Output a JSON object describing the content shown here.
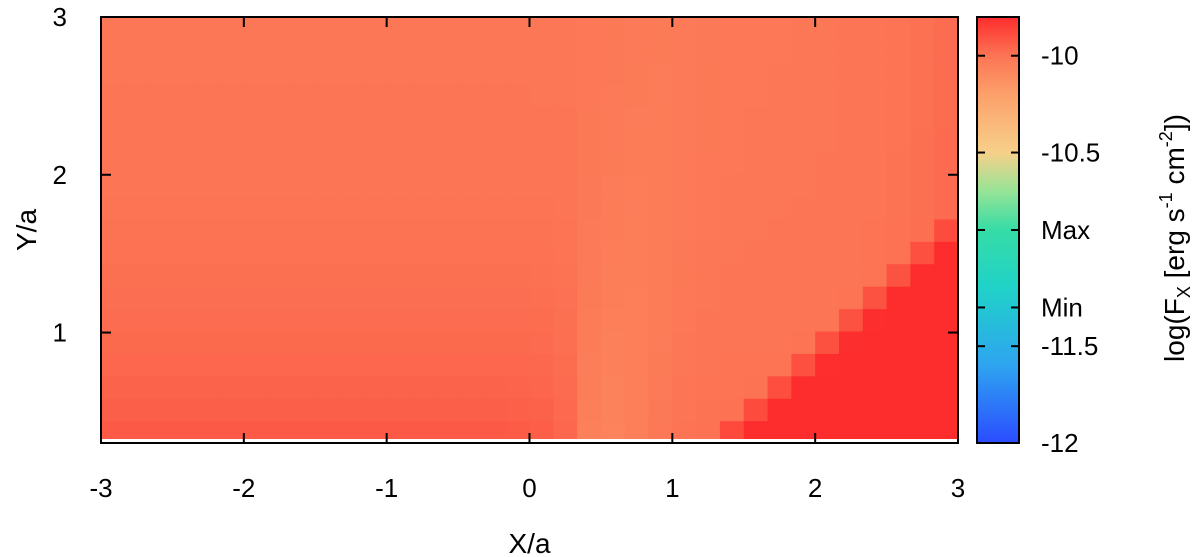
{
  "chart_data": {
    "type": "heatmap",
    "title": "",
    "xlabel": "X/a",
    "ylabel": "Y/a",
    "xlim": [
      -3,
      3
    ],
    "ylim": [
      0.3,
      3
    ],
    "x_ticks": [
      -3,
      -2,
      -1,
      0,
      1,
      2,
      3
    ],
    "x_tick_labels": [
      "-3",
      "-2",
      "-1",
      "0",
      "1",
      "2",
      "3"
    ],
    "y_ticks": [
      1,
      2,
      3
    ],
    "y_tick_labels": [
      "1",
      "2",
      "3"
    ],
    "grid": false,
    "colorbar": {
      "label_base": "log(F",
      "label_sub": "X",
      "label_mid": " [erg s",
      "label_sup1": "-1",
      "label_mid2": " cm",
      "label_sup2": "-2",
      "label_end": "])",
      "range": [
        -12,
        -9.8
      ],
      "ticks": [
        {
          "value": -10,
          "label": "-10"
        },
        {
          "value": -10.5,
          "label": "-10.5"
        },
        {
          "value": -10.9,
          "label": "Max"
        },
        {
          "value": -11.3,
          "label": "Min"
        },
        {
          "value": -11.5,
          "label": "-11.5"
        },
        {
          "value": -12,
          "label": "-12"
        }
      ],
      "colors": [
        {
          "value": -12.0,
          "color": "#2b4cff"
        },
        {
          "value": -11.6,
          "color": "#2ea4f0"
        },
        {
          "value": -11.2,
          "color": "#20d2c8"
        },
        {
          "value": -10.9,
          "color": "#36dca6"
        },
        {
          "value": -10.7,
          "color": "#96e496"
        },
        {
          "value": -10.5,
          "color": "#f7d08a"
        },
        {
          "value": -10.2,
          "color": "#fca06a"
        },
        {
          "value": -10.0,
          "color": "#fc7454"
        },
        {
          "value": -9.8,
          "color": "#fd2d2d"
        }
      ]
    },
    "grid_nx": 36,
    "grid_ny": 19,
    "y_min_cells": 0.3,
    "description_of_field": "log flux: near -10.0 in upper region, lower (~-9.9) along base on left, orange plume rising around X=0.5, saturated red (>-9.8) in lower-right corner"
  }
}
